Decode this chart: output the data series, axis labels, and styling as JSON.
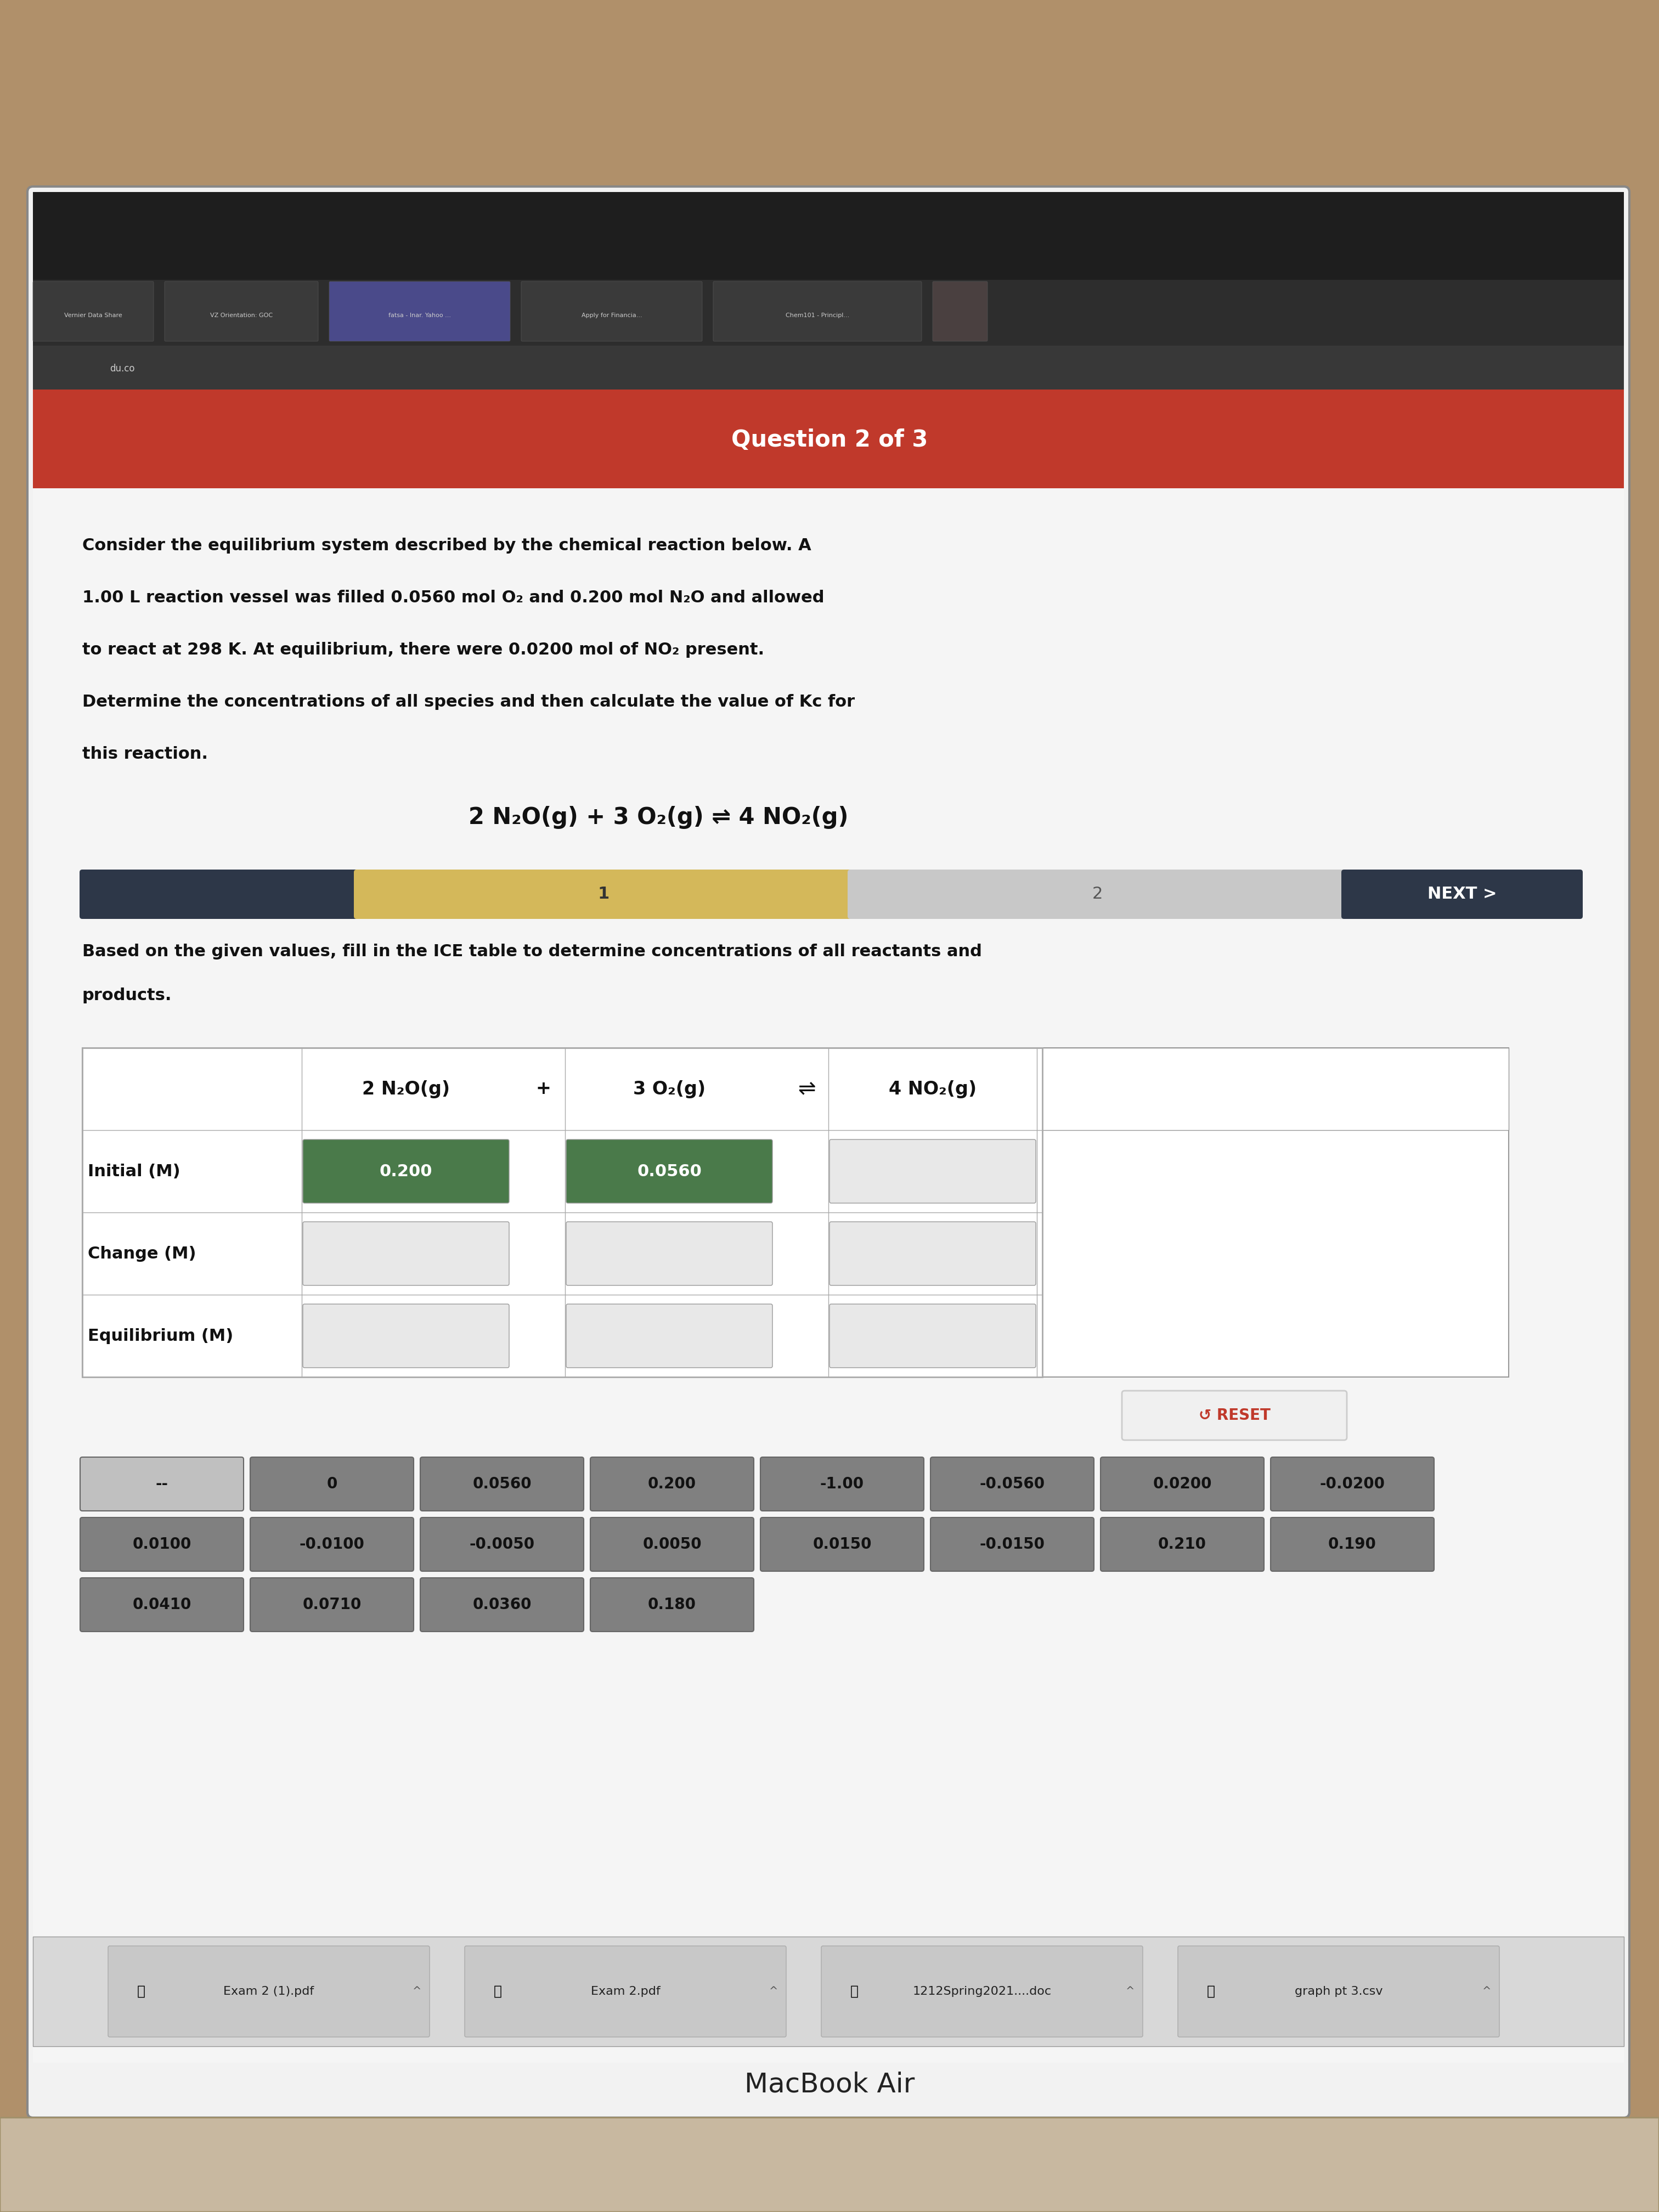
{
  "bg_color": "#c8c8c8",
  "screen_bg": "#f0f0f0",
  "browser_bar_color": "#2a2a2a",
  "red_bar_color": "#b83232",
  "question_label": "Question 2 of 3",
  "problem_text_lines": [
    "Consider the equilibrium system described by the chemical reaction below. A",
    "1.00 L reaction vessel was filled 0.0560 mol O₂ and 0.200 mol N₂O and allowed",
    "to react at 298 K. At equilibrium, there were 0.0200 mol of NO₂ present.",
    "Determine the concentrations of all species and then calculate the value of Kc for",
    "this reaction."
  ],
  "reaction": "2 N₂O(g) + 3 O₂(g) ⇌ 4 NO₂(g)",
  "progress_label1": "1",
  "progress_label2": "2",
  "progress_next": "NEXT",
  "instruction": "Based on the given values, fill in the ICE table to determine concentrations of all reactants and\nproducts.",
  "table_header": [
    "2 N₂O(g)",
    "+",
    "3 O₂(g)",
    "⇌",
    "4 NO₂(g)"
  ],
  "row_labels": [
    "Initial (M)",
    "Change (M)",
    "Equilibrium (M)"
  ],
  "initial_values": [
    "0.200",
    "0.0560",
    ""
  ],
  "change_values": [
    "",
    "",
    ""
  ],
  "equil_values": [
    "",
    "",
    ""
  ],
  "answer_buttons_row1": [
    "--",
    "0",
    "0.0560",
    "0.200",
    "-1.00",
    "-0.0560",
    "0.0200",
    "-0.0200"
  ],
  "answer_buttons_row2": [
    "0.0100",
    "-0.0100",
    "-0.0050",
    "0.0050",
    "0.0150",
    "-0.0150",
    "0.210",
    "0.190"
  ],
  "answer_buttons_row3": [
    "0.0410",
    "0.0710",
    "0.0360",
    "0.180"
  ],
  "reset_label": "↺ RESET",
  "bottom_bar_items": [
    "Exam 2 (1).pdf",
    "Exam 2.pdf",
    "1212Spring2021....doc",
    "graph pt 3.csv"
  ],
  "macbook_label": "MacBook Air"
}
